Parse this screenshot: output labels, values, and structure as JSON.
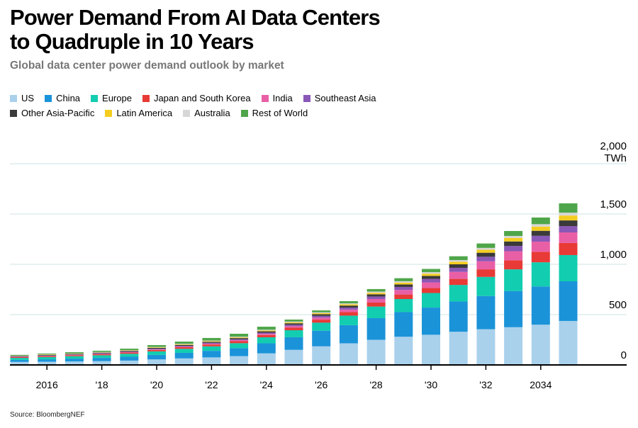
{
  "title_line1": "Power Demand From AI Data Centers",
  "title_line2": "to Quadruple in 10 Years",
  "subtitle": "Global data center power demand outlook by market",
  "source": "Source: BloombergNEF",
  "chart_data": {
    "type": "bar",
    "stacked": true,
    "title": "Power Demand From AI Data Centers to Quadruple in 10 Years",
    "ylabel": "TWh",
    "ylim": [
      0,
      2000
    ],
    "yticks": [
      {
        "v": 0,
        "label": "0"
      },
      {
        "v": 500,
        "label": "500"
      },
      {
        "v": 1000,
        "label": "1,000"
      },
      {
        "v": 1500,
        "label": "1,500"
      },
      {
        "v": 2000,
        "label": "2,000"
      }
    ],
    "yunit": "TWh",
    "x": [
      2015,
      2016,
      2017,
      2018,
      2019,
      2020,
      2021,
      2022,
      2023,
      2024,
      2025,
      2026,
      2027,
      2028,
      2029,
      2030,
      2031,
      2032,
      2033,
      2034,
      2035
    ],
    "xticks": [
      {
        "v": 2016,
        "label": "2016"
      },
      {
        "v": 2018,
        "label": "'18"
      },
      {
        "v": 2020,
        "label": "'20"
      },
      {
        "v": 2022,
        "label": "'22"
      },
      {
        "v": 2024,
        "label": "'24"
      },
      {
        "v": 2026,
        "label": "'26"
      },
      {
        "v": 2028,
        "label": "'28"
      },
      {
        "v": 2030,
        "label": "'30"
      },
      {
        "v": 2032,
        "label": "'32"
      },
      {
        "v": 2034,
        "label": "2034"
      }
    ],
    "grid": true,
    "legend_placement": "top-left",
    "series": [
      {
        "name": "US",
        "color": "#a9d1ec",
        "values": [
          30,
          32,
          35,
          38,
          43,
          55,
          65,
          75,
          88,
          115,
          150,
          185,
          215,
          250,
          280,
          300,
          330,
          355,
          375,
          400,
          437
        ]
      },
      {
        "name": "China",
        "color": "#1b93d9",
        "values": [
          20,
          24,
          28,
          32,
          38,
          45,
          55,
          65,
          78,
          100,
          125,
          155,
          180,
          215,
          245,
          270,
          300,
          330,
          360,
          380,
          394
        ]
      },
      {
        "name": "Europe",
        "color": "#12cdb0",
        "values": [
          20,
          22,
          24,
          26,
          30,
          35,
          40,
          45,
          50,
          60,
          70,
          80,
          95,
          115,
          130,
          145,
          165,
          190,
          215,
          240,
          261
        ]
      },
      {
        "name": "Japan and South Korea",
        "color": "#e83a36",
        "values": [
          8,
          9,
          10,
          11,
          12,
          14,
          16,
          18,
          20,
          22,
          25,
          30,
          35,
          40,
          45,
          50,
          60,
          75,
          90,
          105,
          120
        ]
      },
      {
        "name": "India",
        "color": "#e95fa6",
        "values": [
          2,
          2,
          3,
          3,
          4,
          5,
          6,
          8,
          10,
          12,
          15,
          20,
          25,
          35,
          45,
          55,
          70,
          80,
          90,
          100,
          105
        ]
      },
      {
        "name": "Southeast Asia",
        "color": "#8a58b6",
        "values": [
          4,
          5,
          5,
          6,
          6,
          7,
          8,
          9,
          10,
          12,
          14,
          17,
          20,
          25,
          30,
          35,
          40,
          45,
          52,
          58,
          63
        ]
      },
      {
        "name": "Other Asia-Pacific",
        "color": "#3a3a3a",
        "values": [
          4,
          5,
          5,
          6,
          7,
          8,
          9,
          10,
          11,
          13,
          15,
          17,
          20,
          22,
          25,
          30,
          35,
          40,
          45,
          50,
          56
        ]
      },
      {
        "name": "Latin America",
        "color": "#f4cd20",
        "values": [
          2,
          3,
          3,
          3,
          4,
          5,
          6,
          6,
          7,
          8,
          9,
          10,
          12,
          15,
          18,
          22,
          26,
          30,
          35,
          42,
          49
        ]
      },
      {
        "name": "Australia",
        "color": "#d7d7d7",
        "values": [
          3,
          3,
          3,
          4,
          4,
          5,
          5,
          6,
          7,
          8,
          8,
          9,
          10,
          12,
          14,
          15,
          16,
          18,
          20,
          24,
          28
        ]
      },
      {
        "name": "Rest of World",
        "color": "#4fa64a",
        "values": [
          7,
          8,
          11,
          12,
          14,
          18,
          22,
          26,
          29,
          30,
          20,
          19,
          22,
          25,
          30,
          32,
          38,
          44,
          49,
          66,
          93
        ]
      }
    ]
  }
}
